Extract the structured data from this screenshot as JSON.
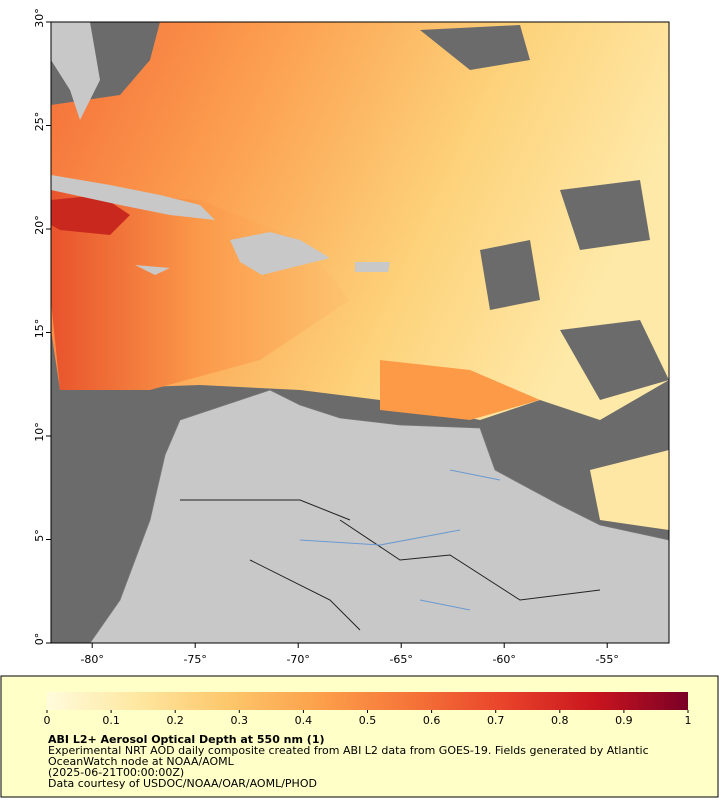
{
  "map": {
    "xlim": [
      -82,
      -52
    ],
    "ylim": [
      0,
      30
    ],
    "xticks": [
      {
        "value": -80,
        "label": "-80°"
      },
      {
        "value": -75,
        "label": "-75°"
      },
      {
        "value": -70,
        "label": "-70°"
      },
      {
        "value": -65,
        "label": "-65°"
      },
      {
        "value": -60,
        "label": "-60°"
      },
      {
        "value": -55,
        "label": "-55°"
      }
    ],
    "yticks": [
      {
        "value": 0,
        "label": "0°"
      },
      {
        "value": 5,
        "label": "5°"
      },
      {
        "value": 10,
        "label": "10°"
      },
      {
        "value": 15,
        "label": "15°"
      },
      {
        "value": 20,
        "label": "20°"
      },
      {
        "value": 25,
        "label": "25°"
      },
      {
        "value": 30,
        "label": "30°"
      }
    ]
  },
  "colorbar": {
    "lim": [
      0,
      1
    ],
    "ticks": [
      0,
      0.1,
      0.2,
      0.3,
      0.4,
      0.5,
      0.6,
      0.7,
      0.8,
      0.9,
      1
    ],
    "colors": [
      "#fffbdc",
      "#fee7a0",
      "#fdc66a",
      "#fc9f4a",
      "#f57338",
      "#e8432a",
      "#c8141e",
      "#7a0026"
    ]
  },
  "caption": {
    "title": "ABI L2+ Aerosol Optical Depth at 550 nm (1)",
    "lines": [
      "Experimental NRT AOD daily composite created from ABI L2 data from GOES-19. Fields generated by Atlantic",
      "OceanWatch node at NOAA/AOML",
      "(2025-06-21T00:00:00Z)",
      "Data courtesy of USDOC/NOAA/OAR/AOML/PHOD"
    ]
  }
}
